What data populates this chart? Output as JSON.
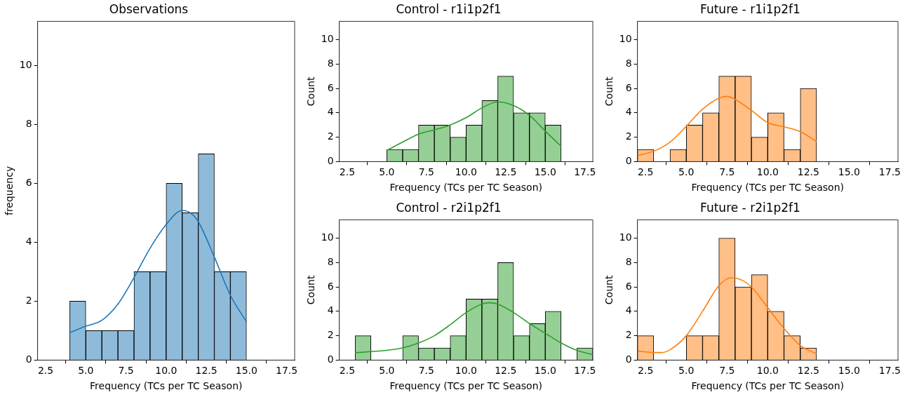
{
  "chart_data": [
    {
      "type": "histogram",
      "title": "Observations",
      "xlabel": "Frequency (TCs per TC Season)",
      "ylabel": "frequency",
      "bins": [
        4,
        5,
        6,
        7,
        8,
        9,
        10,
        11,
        12,
        13,
        14,
        15
      ],
      "values": [
        2,
        1,
        1,
        1,
        3,
        3,
        6,
        5,
        7,
        3,
        3
      ],
      "color": "#8fbbdb",
      "series": [
        {
          "type": "line",
          "color": "#1f77b4",
          "x": [
            4,
            5,
            6,
            7,
            8,
            9,
            10,
            11,
            11.5,
            12,
            13,
            14,
            15
          ],
          "values": [
            0.93,
            1.15,
            1.35,
            1.9,
            2.8,
            3.8,
            4.6,
            5.08,
            5.0,
            4.7,
            3.5,
            2.2,
            1.3
          ]
        }
      ],
      "xlim": [
        2,
        18
      ],
      "xticks": [
        2.5,
        {
          "value": 5,
          "label": "5.0"
        },
        7.5,
        {
          "value": 10,
          "label": "10.0"
        },
        12.5,
        {
          "value": 15,
          "label": "15.0"
        },
        17.5
      ],
      "ylim": [
        0,
        11.5
      ],
      "yticks": [
        0,
        2,
        4,
        6,
        8,
        10
      ],
      "grid": false
    },
    {
      "type": "histogram",
      "title": "Control - r1i1p2f1",
      "xlabel": "Frequency (TCs per TC Season)",
      "ylabel": "Count",
      "bins": [
        5,
        6,
        7,
        8,
        9,
        10,
        11,
        12,
        13,
        14,
        15,
        16
      ],
      "values": [
        1,
        1,
        3,
        3,
        2,
        3,
        5,
        7,
        4,
        4,
        3
      ],
      "color": "#95cf95",
      "series": [
        {
          "type": "line",
          "color": "#2ca02c",
          "x": [
            5,
            6,
            7,
            8,
            9,
            10,
            11,
            12,
            13,
            14,
            15,
            16
          ],
          "values": [
            0.92,
            1.6,
            2.25,
            2.6,
            3.0,
            3.6,
            4.4,
            4.9,
            4.6,
            3.8,
            2.5,
            1.25
          ]
        }
      ],
      "xlim": [
        2,
        18
      ],
      "xticks": [
        2.5,
        {
          "value": 5,
          "label": "5.0"
        },
        7.5,
        {
          "value": 10,
          "label": "10.0"
        },
        12.5,
        {
          "value": 15,
          "label": "15.0"
        },
        17.5
      ],
      "ylim": [
        0,
        11.5
      ],
      "yticks": [
        0,
        2,
        4,
        6,
        8,
        10
      ],
      "grid": false
    },
    {
      "type": "histogram",
      "title": "Future - r1i1p2f1",
      "xlabel": "Frequency (TCs per TC Season)",
      "ylabel": "Count",
      "bins": [
        2,
        3,
        4,
        5,
        6,
        7,
        8,
        9,
        10,
        11,
        12,
        13
      ],
      "values": [
        1,
        0,
        1,
        3,
        4,
        7,
        7,
        2,
        4,
        1,
        6
      ],
      "color": "#ffbf86",
      "series": [
        {
          "type": "line",
          "color": "#ff7f0e",
          "x": [
            2,
            3,
            4,
            5,
            6,
            7,
            7.5,
            8,
            9,
            10,
            11,
            12,
            13
          ],
          "values": [
            0.5,
            0.85,
            1.6,
            2.9,
            4.3,
            5.2,
            5.35,
            5.1,
            4.2,
            3.2,
            2.85,
            2.45,
            1.65
          ]
        }
      ],
      "xlim": [
        2,
        18
      ],
      "xticks": [
        2.5,
        {
          "value": 5,
          "label": "5.0"
        },
        7.5,
        {
          "value": 10,
          "label": "10.0"
        },
        12.5,
        {
          "value": 15,
          "label": "15.0"
        },
        17.5
      ],
      "ylim": [
        0,
        11.5
      ],
      "yticks": [
        0,
        2,
        4,
        6,
        8,
        10
      ],
      "grid": false
    },
    {
      "type": "histogram",
      "title": "Control - r2i1p2f1",
      "xlabel": "Frequency (TCs per TC Season)",
      "ylabel": "Count",
      "bins": [
        3,
        4,
        5,
        6,
        7,
        8,
        9,
        10,
        11,
        12,
        13,
        14,
        15,
        16,
        17,
        18
      ],
      "values": [
        2,
        0,
        0,
        2,
        1,
        1,
        2,
        5,
        5,
        8,
        2,
        3,
        4,
        0,
        1
      ],
      "color": "#95cf95",
      "series": [
        {
          "type": "line",
          "color": "#2ca02c",
          "x": [
            3,
            4,
            5,
            6,
            7,
            8,
            9,
            10,
            11,
            11.5,
            12,
            13,
            14,
            15,
            16,
            17,
            18
          ],
          "values": [
            0.6,
            0.7,
            0.8,
            1.0,
            1.4,
            2.0,
            2.9,
            3.9,
            4.6,
            4.7,
            4.6,
            3.9,
            3.0,
            2.2,
            1.4,
            0.8,
            0.45
          ]
        }
      ],
      "xlim": [
        2,
        18
      ],
      "xticks": [
        2.5,
        {
          "value": 5,
          "label": "5.0"
        },
        7.5,
        {
          "value": 10,
          "label": "10.0"
        },
        12.5,
        {
          "value": 15,
          "label": "15.0"
        },
        17.5
      ],
      "ylim": [
        0,
        11.5
      ],
      "yticks": [
        0,
        2,
        4,
        6,
        8,
        10
      ],
      "grid": false
    },
    {
      "type": "histogram",
      "title": "Future - r2i1p2f1",
      "xlabel": "Frequency (TCs per TC Season)",
      "ylabel": "Count",
      "bins": [
        2,
        3,
        4,
        5,
        6,
        7,
        8,
        9,
        10,
        11,
        12,
        13
      ],
      "values": [
        2,
        0,
        0,
        2,
        2,
        10,
        6,
        7,
        4,
        2,
        1
      ],
      "color": "#ffbf86",
      "series": [
        {
          "type": "line",
          "color": "#ff7f0e",
          "x": [
            2,
            3,
            3.5,
            4,
            5,
            6,
            7,
            7.75,
            8.5,
            9,
            10,
            11,
            12,
            13
          ],
          "values": [
            0.75,
            0.62,
            0.62,
            0.85,
            2.0,
            4.0,
            6.1,
            6.75,
            6.5,
            6.0,
            4.3,
            2.6,
            1.2,
            0.52
          ]
        }
      ],
      "xlim": [
        2,
        18
      ],
      "xticks": [
        2.5,
        {
          "value": 5,
          "label": "5.0"
        },
        7.5,
        {
          "value": 10,
          "label": "10.0"
        },
        12.5,
        {
          "value": 15,
          "label": "15.0"
        },
        17.5
      ],
      "ylim": [
        0,
        11.5
      ],
      "yticks": [
        0,
        2,
        4,
        6,
        8,
        10
      ],
      "grid": false
    }
  ]
}
